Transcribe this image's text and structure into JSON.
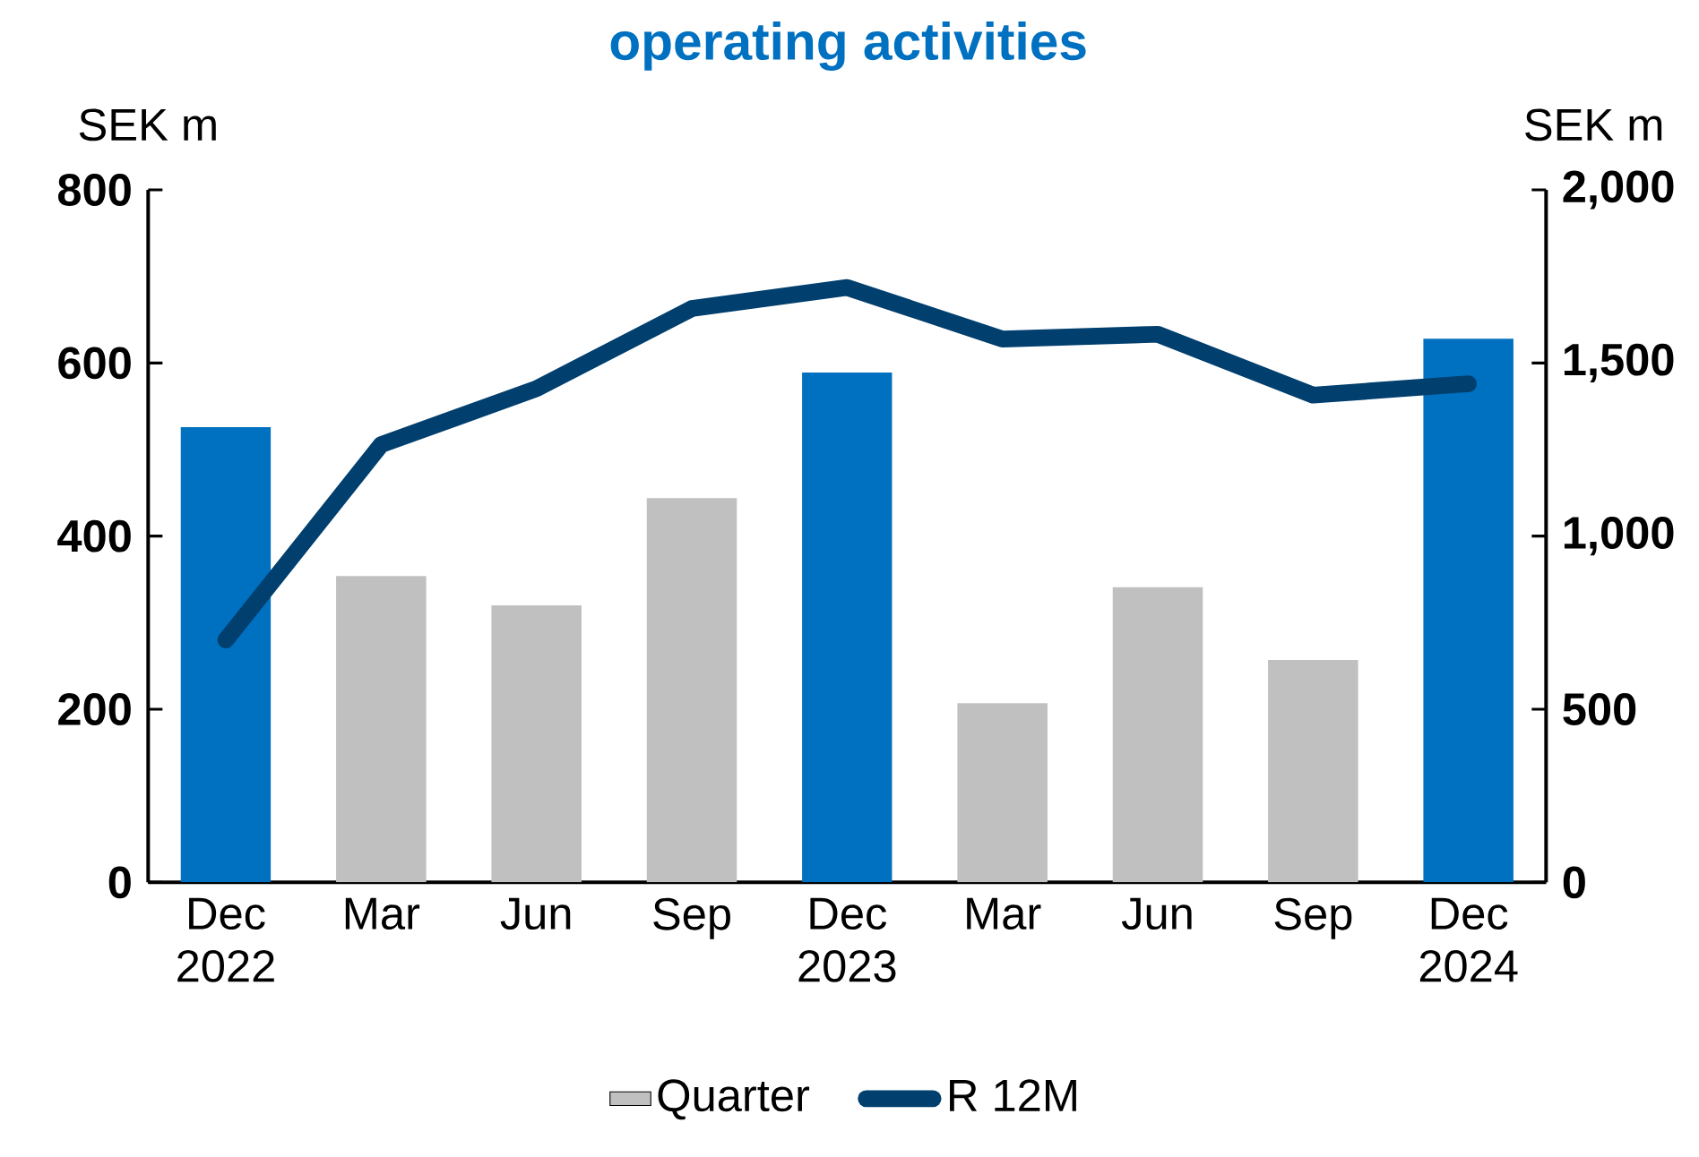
{
  "chart_data": {
    "type": "bar",
    "title": "operating activities",
    "ylabel": "SEK m",
    "y2label": "SEK m",
    "categories": [
      "Dec 2022",
      "Mar",
      "Jun",
      "Sep",
      "Dec 2023",
      "Mar",
      "Jun",
      "Sep",
      "Dec 2024"
    ],
    "series": [
      {
        "name": "Quarter",
        "color": "#c0c0c0",
        "colors": [
          "#0070c0",
          "#c0c0c0",
          "#c0c0c0",
          "#c0c0c0",
          "#0070c0",
          "#c0c0c0",
          "#c0c0c0",
          "#c0c0c0",
          "#0070c0"
        ],
        "values": [
          526,
          354,
          320,
          444,
          589,
          207,
          341,
          257,
          628
        ]
      },
      {
        "type": "line",
        "name": "R 12M",
        "color": "#003f6e",
        "axis": "y2",
        "values": [
          700,
          1264,
          1426,
          1657,
          1718,
          1569,
          1583,
          1407,
          1440
        ]
      }
    ],
    "ylim": [
      0,
      800
    ],
    "yticks": [
      0,
      200,
      400,
      600,
      800
    ],
    "y2lim": [
      0,
      2000
    ],
    "y2ticks": [
      0,
      500,
      {
        "value": 1000,
        "label": "1,000"
      },
      {
        "value": 1500,
        "label": "1,500"
      },
      {
        "value": 2000,
        "label": "2,000"
      }
    ],
    "legend": "bottom",
    "marker": "none",
    "line_style": "solid"
  }
}
